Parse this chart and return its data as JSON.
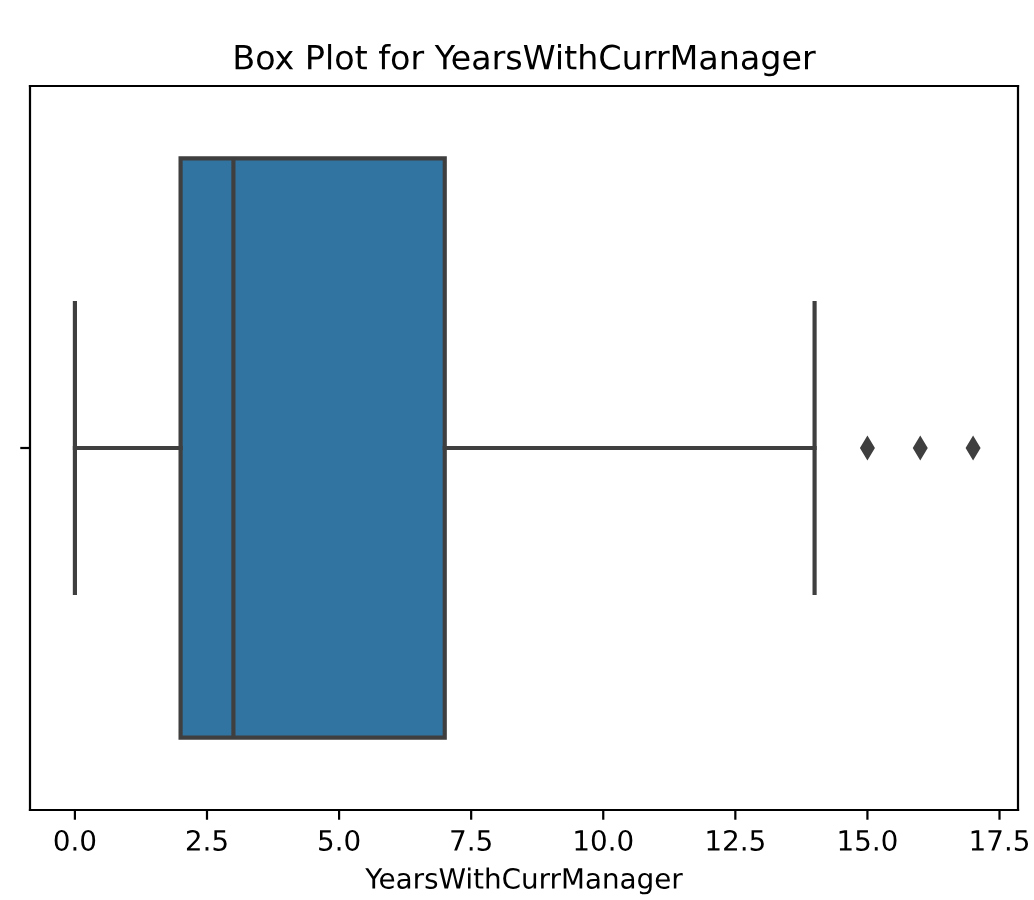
{
  "chart_data": {
    "type": "box",
    "title": "Box Plot for YearsWithCurrManager",
    "xlabel": "YearsWithCurrManager",
    "orientation": "horizontal",
    "categories": [
      null
    ],
    "color": "#3274a1",
    "marker": "diamond",
    "grid": false,
    "boxes": [
      {
        "low": 0,
        "q1": 2,
        "median": 3,
        "q3": 7,
        "high": 14,
        "outliers": [
          15,
          16,
          17
        ]
      }
    ],
    "xlim": [
      -0.85,
      17.85
    ],
    "xticks": [
      {
        "value": 0,
        "label": "0.0"
      },
      {
        "value": 2.5,
        "label": "2.5"
      },
      {
        "value": 5,
        "label": "5.0"
      },
      {
        "value": 7.5,
        "label": "7.5"
      },
      {
        "value": 10,
        "label": "10.0"
      },
      {
        "value": 12.5,
        "label": "12.5"
      },
      {
        "value": 15,
        "label": "15.0"
      },
      {
        "value": 17.5,
        "label": "17.5"
      }
    ]
  }
}
